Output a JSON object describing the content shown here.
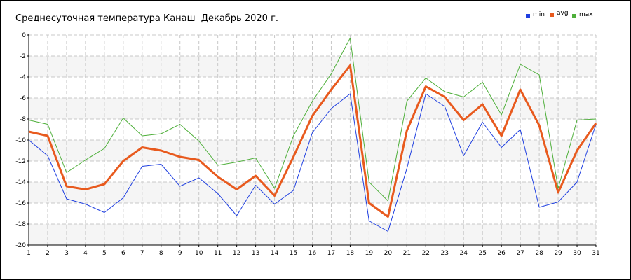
{
  "chart_data": {
    "type": "line",
    "title": "Среднесуточная температура Канаш  Декабрь 2020 г.",
    "x": [
      1,
      2,
      3,
      4,
      5,
      6,
      7,
      8,
      9,
      10,
      11,
      12,
      13,
      14,
      15,
      16,
      17,
      18,
      19,
      20,
      21,
      22,
      23,
      24,
      25,
      26,
      27,
      28,
      29,
      30,
      31
    ],
    "series": [
      {
        "name": "min",
        "color": "#1f3fe0",
        "values": [
          -10,
          -11.5,
          -15.6,
          -16.1,
          -16.9,
          -15.5,
          -12.5,
          -12.3,
          -14.4,
          -13.6,
          -15.1,
          -17.2,
          -14.3,
          -16.1,
          -14.8,
          -9.3,
          -7,
          -5.6,
          -17.7,
          -18.7,
          -12.7,
          -5.6,
          -6.8,
          -11.5,
          -8.3,
          -10.7,
          -9,
          -16.4,
          -15.9,
          -14,
          -8.5
        ]
      },
      {
        "name": "avg",
        "color": "#e85a1e",
        "values": [
          -9.2,
          -9.6,
          -14.4,
          -14.7,
          -14.2,
          -12,
          -10.7,
          -11,
          -11.6,
          -11.9,
          -13.5,
          -14.7,
          -13.4,
          -15.3,
          -11.6,
          -7.7,
          -5.2,
          -2.9,
          -16,
          -17.3,
          -9.1,
          -4.9,
          -5.9,
          -8.1,
          -6.6,
          -9.6,
          -5.2,
          -8.6,
          -15,
          -11,
          -8.4
        ]
      },
      {
        "name": "max",
        "color": "#4eaf3a",
        "values": [
          -8.1,
          -8.5,
          -13.1,
          -11.9,
          -10.8,
          -7.9,
          -9.6,
          -9.4,
          -8.5,
          -10.1,
          -12.4,
          -12.1,
          -11.7,
          -14.6,
          -9.6,
          -6.3,
          -3.7,
          -0.3,
          -14,
          -15.8,
          -6.3,
          -4.1,
          -5.4,
          -5.9,
          -4.5,
          -7.6,
          -2.8,
          -3.8,
          -14.6,
          -8.1,
          -8
        ]
      }
    ],
    "xlim": [
      1,
      31
    ],
    "ylim": [
      -20,
      0
    ],
    "y_ticks": [
      0,
      -2,
      -4,
      -6,
      -8,
      -10,
      -12,
      -14,
      -16,
      -18,
      -20
    ],
    "x_ticks": [
      1,
      2,
      3,
      4,
      5,
      6,
      7,
      8,
      9,
      10,
      11,
      12,
      13,
      14,
      15,
      16,
      17,
      18,
      19,
      20,
      21,
      22,
      23,
      24,
      25,
      26,
      27,
      28,
      29,
      30,
      31
    ],
    "grid": true,
    "legend_position": "top-right",
    "xlabel": "",
    "ylabel": ""
  }
}
